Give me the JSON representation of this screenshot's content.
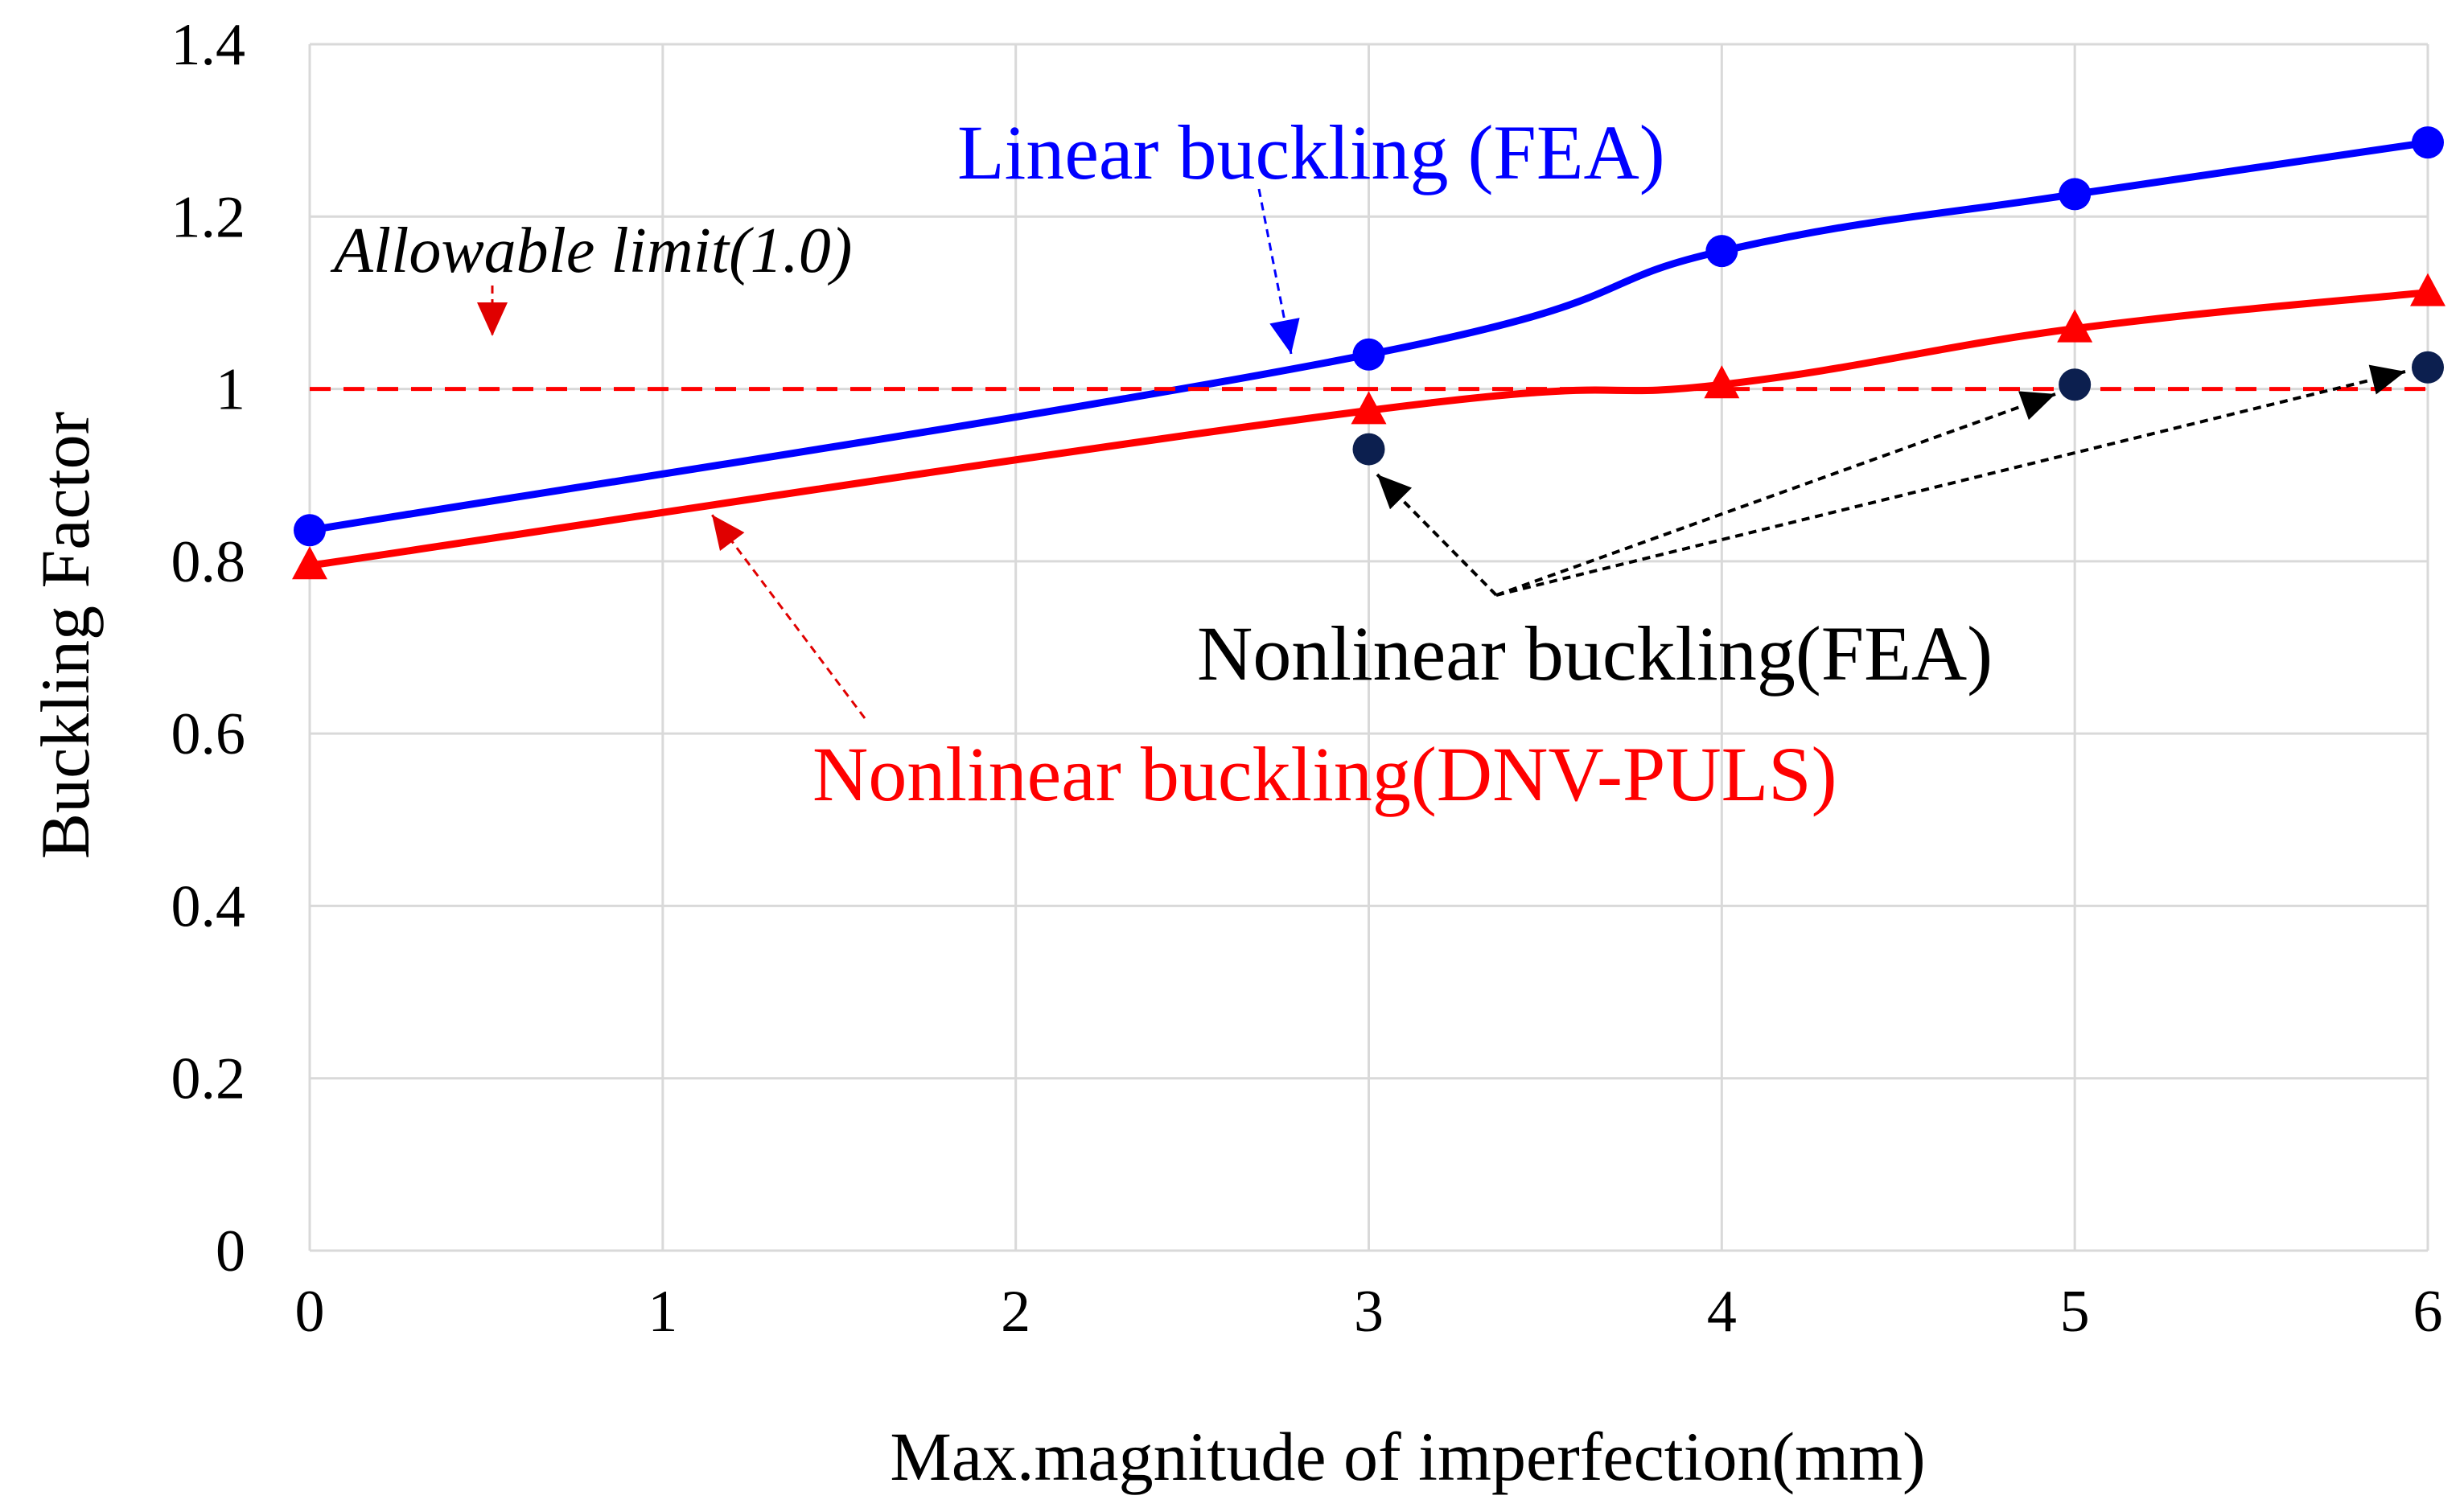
{
  "chart_data": {
    "type": "line",
    "title": "",
    "xlabel": "Max.magnitude of imperfection(mm)",
    "ylabel": "Buckling Factor",
    "xlim": [
      0,
      6
    ],
    "ylim": [
      0,
      1.4
    ],
    "x_ticks": [
      "0",
      "1",
      "2",
      "3",
      "4",
      "5",
      "6"
    ],
    "y_ticks": [
      "0",
      "0.2",
      "0.4",
      "0.6",
      "0.8",
      "1",
      "1.2",
      "1.4"
    ],
    "grid": true,
    "legend": "none",
    "series": [
      {
        "color": "#0000ff",
        "marker": "circle",
        "line": "solid",
        "points": [
          [
            0,
            0.836
          ],
          [
            3,
            1.04
          ],
          [
            4,
            1.16
          ],
          [
            5,
            1.226
          ],
          [
            6,
            1.286
          ]
        ]
      },
      {
        "color": "#ff0000",
        "marker": "triangle",
        "line": "solid",
        "points": [
          [
            0,
            0.795
          ],
          [
            3,
            0.975
          ],
          [
            4,
            1.005
          ],
          [
            5,
            1.07
          ],
          [
            6,
            1.112
          ]
        ]
      },
      {
        "color": "#0c1f4f",
        "marker": "circle",
        "line": "none",
        "points": [
          [
            3,
            0.93
          ],
          [
            5,
            1.005
          ],
          [
            6,
            1.025
          ]
        ]
      },
      {
        "color": "#ff0000",
        "marker": "none",
        "line": "dashed",
        "points": [
          [
            0,
            1.0
          ],
          [
            6,
            1.0
          ]
        ]
      }
    ],
    "annotations": {
      "linear_fea": {
        "text": "Linear buckling (FEA)",
        "color": "#0000ff"
      },
      "allowable": {
        "text": "Allowable limit(1.0)",
        "color": "#000000"
      },
      "nonlinear_fea": {
        "text": "Nonlinear buckling(FEA)",
        "color": "#000000"
      },
      "nonlinear_dnv": {
        "text": "Nonlinear buckling(DNV-PULS)",
        "color": "#ff0000"
      }
    }
  }
}
